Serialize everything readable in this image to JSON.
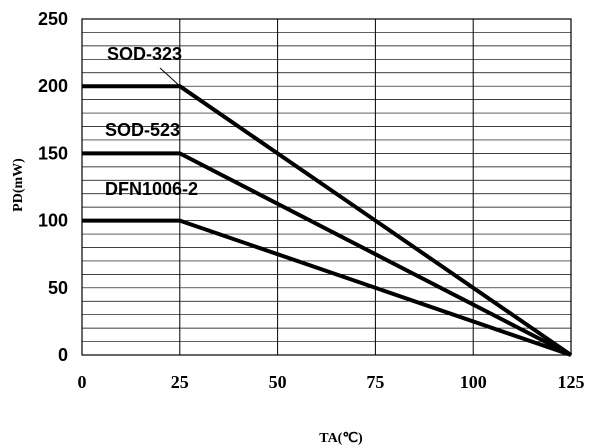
{
  "chart_data": {
    "type": "line",
    "title": "",
    "xlabel": "TA(℃)",
    "ylabel": "PD(mW)",
    "xlim": [
      0,
      125
    ],
    "ylim": [
      0,
      250
    ],
    "x_ticks": [
      0,
      25,
      50,
      75,
      100,
      125
    ],
    "y_ticks": [
      0,
      50,
      100,
      150,
      200,
      250
    ],
    "x_tick_labels": [
      "0",
      "25",
      "50",
      "75",
      "100",
      "125"
    ],
    "y_tick_labels": [
      "0",
      "50",
      "100",
      "150",
      "200",
      "250"
    ],
    "grid": true,
    "y_minor_step": 10,
    "series": [
      {
        "name": "SOD-323",
        "x": [
          0,
          25,
          125
        ],
        "y": [
          200,
          200,
          0
        ]
      },
      {
        "name": "SOD-523",
        "x": [
          0,
          25,
          125
        ],
        "y": [
          150,
          150,
          0
        ]
      },
      {
        "name": "DFN1006-2",
        "x": [
          0,
          25,
          125
        ],
        "y": [
          100,
          100,
          0
        ]
      }
    ]
  }
}
